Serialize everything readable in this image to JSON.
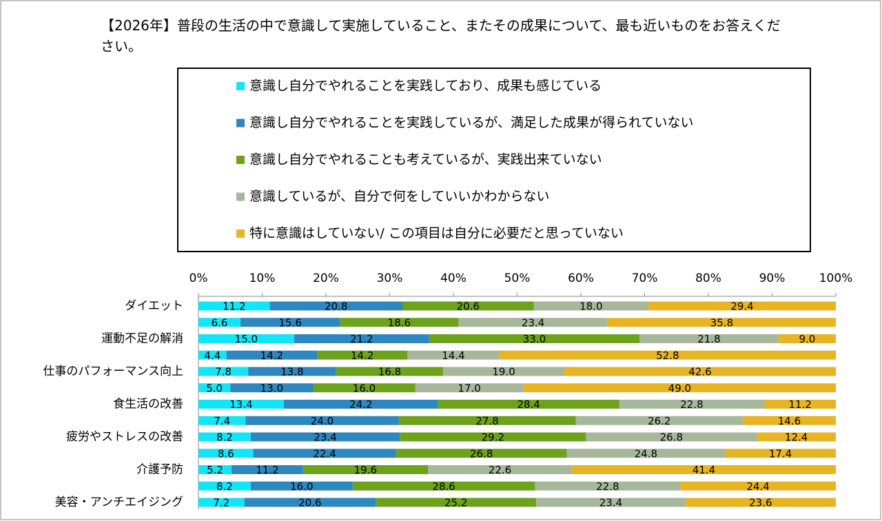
{
  "chart_data": {
    "type": "stacked-barh",
    "title": "【2026年】普段の生活の中で意識して実施していること、またその成果について、最も近いものをお答えください。",
    "categories": [
      "ダイエット",
      null,
      "運動不足の解消",
      null,
      "仕事のパフォーマンス向上",
      null,
      "食生活の改善",
      null,
      "疲労やストレスの改善",
      null,
      "介護予防",
      null,
      "美容・アンチエイジング"
    ],
    "series": [
      {
        "name": "意識し自分でやれることを実践しており、成果も感じている",
        "color": "#12e6f6",
        "values": [
          11.2,
          6.6,
          15.0,
          4.4,
          7.8,
          5.0,
          13.4,
          7.4,
          8.2,
          8.6,
          5.2,
          8.2,
          7.2
        ],
        "value_labels": [
          "11.2",
          "6.6",
          "15.0",
          "4.4",
          "7.8",
          "5.0",
          "13.4",
          "7.4",
          "8.2",
          "8.6",
          "5.2",
          "8.2",
          "7.2"
        ]
      },
      {
        "name": "意識し自分でやれることを実践しているが、満足した成果が得られていない",
        "color": "#2f87bf",
        "values": [
          20.8,
          15.6,
          21.2,
          14.2,
          13.8,
          13.0,
          24.2,
          24.0,
          23.4,
          22.4,
          11.2,
          16.0,
          20.6
        ],
        "value_labels": [
          "20.8",
          "15.6",
          "21.2",
          "14.2",
          "13.8",
          "13.0",
          "24.2",
          "24.0",
          "23.4",
          "22.4",
          "11.2",
          "16.0",
          "20.6"
        ]
      },
      {
        "name": "意識し自分でやれることも考えているが、実践出来ていない",
        "color": "#6ca21c",
        "values": [
          20.6,
          18.6,
          33.0,
          14.2,
          16.8,
          16.0,
          28.4,
          27.8,
          29.2,
          26.8,
          19.6,
          28.6,
          25.2
        ],
        "value_labels": [
          "20.6",
          "18.6",
          "33.0",
          "14.2",
          "16.8",
          "16.0",
          "28.4",
          "27.8",
          "29.2",
          "26.8",
          "19.6",
          "28.6",
          "25.2"
        ]
      },
      {
        "name": "意識しているが、自分で何をしていいかわからない",
        "color": "#a6b79c",
        "values": [
          18.0,
          23.4,
          21.8,
          14.4,
          19.0,
          17.0,
          22.8,
          26.2,
          26.8,
          24.8,
          22.6,
          22.8,
          23.4
        ],
        "value_labels": [
          "18.0",
          "23.4",
          "21.8",
          "14.4",
          "19.0",
          "17.0",
          "22.8",
          "26.2",
          "26.8",
          "24.8",
          "22.6",
          "22.8",
          "23.4"
        ]
      },
      {
        "name": "特に意識はしていない/ この項目は自分に必要だと思っていない",
        "color": "#e7b423",
        "values": [
          29.4,
          35.8,
          9.0,
          52.8,
          42.6,
          49.0,
          11.2,
          14.6,
          12.4,
          17.4,
          41.4,
          24.4,
          23.6
        ],
        "value_labels": [
          "29.4",
          "35.8",
          "9.0",
          "52.8",
          "42.6",
          "49.0",
          "11.2",
          "14.6",
          "12.4",
          "17.4",
          "41.4",
          "24.4",
          "23.6"
        ]
      }
    ],
    "xlim": [
      0,
      100
    ],
    "xticks": [
      {
        "value": 0,
        "label": "0%"
      },
      {
        "value": 10,
        "label": "10%"
      },
      {
        "value": 20,
        "label": "20%"
      },
      {
        "value": 30,
        "label": "30%"
      },
      {
        "value": 40,
        "label": "40%"
      },
      {
        "value": 50,
        "label": "50%"
      },
      {
        "value": 60,
        "label": "60%"
      },
      {
        "value": 70,
        "label": "70%"
      },
      {
        "value": 80,
        "label": "80%"
      },
      {
        "value": 90,
        "label": "90%"
      },
      {
        "value": 100,
        "label": "100%"
      }
    ]
  }
}
